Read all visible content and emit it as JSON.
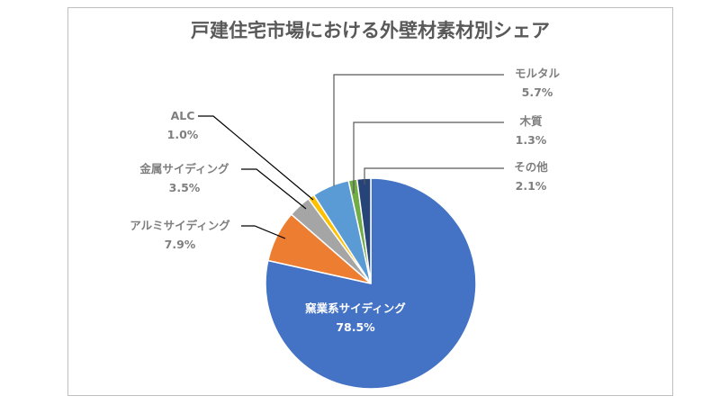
{
  "chart_data": {
    "type": "pie",
    "title": "戸建住宅市場における外壁材素材別シェア",
    "start_angle": "top, clockwise",
    "slices": [
      {
        "label": "窯業系サイディング",
        "value": 78.5,
        "display": "78.5%",
        "color": "#4472c4"
      },
      {
        "label": "アルミサイディング",
        "value": 7.9,
        "display": "7.9%",
        "color": "#ed7d31"
      },
      {
        "label": "金属サイディング",
        "value": 3.5,
        "display": "3.5%",
        "color": "#a5a5a5"
      },
      {
        "label": "ALC",
        "value": 1.0,
        "display": "1.0%",
        "color": "#ffc000"
      },
      {
        "label": "モルタル",
        "value": 5.7,
        "display": "5.7%",
        "color": "#5b9bd5"
      },
      {
        "label": "木質",
        "value": 1.3,
        "display": "1.3%",
        "color": "#70ad47"
      },
      {
        "label": "その他",
        "value": 2.1,
        "display": "2.1%",
        "color": "#264478"
      }
    ],
    "legend": "none"
  }
}
